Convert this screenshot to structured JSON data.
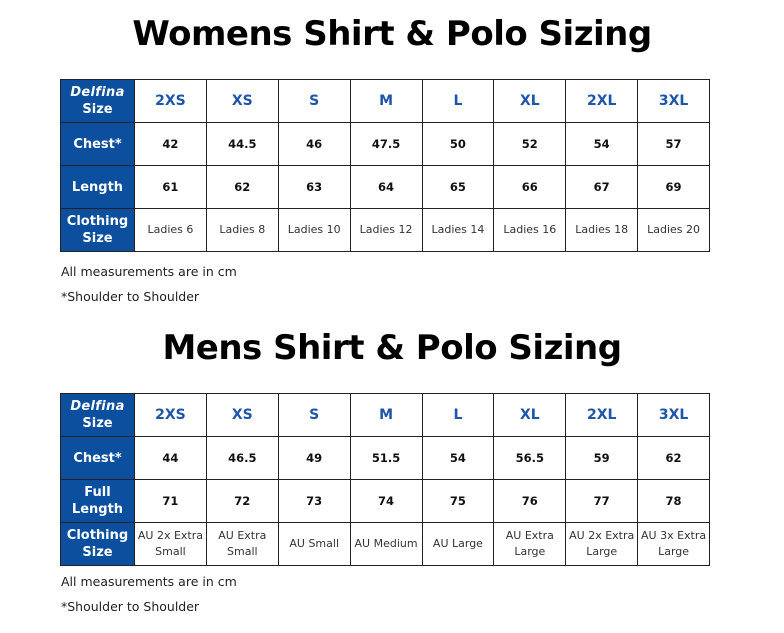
{
  "colors": {
    "header_bg": "#0c4f9e",
    "size_text": "#1d56a8"
  },
  "sections": [
    {
      "title": "Womens Shirt & Polo Sizing",
      "brand": "Delfina",
      "size_label": "Size",
      "sizes": [
        "2XS",
        "XS",
        "S",
        "M",
        "L",
        "XL",
        "2XL",
        "3XL"
      ],
      "rows": [
        {
          "label": "Chest*",
          "kind": "num",
          "values": [
            "42",
            "44.5",
            "46",
            "47.5",
            "50",
            "52",
            "54",
            "57"
          ]
        },
        {
          "label": "Length",
          "kind": "num",
          "values": [
            "61",
            "62",
            "63",
            "64",
            "65",
            "66",
            "67",
            "69"
          ]
        },
        {
          "label": "Clothing Size",
          "kind": "txt",
          "values": [
            "Ladies 6",
            "Ladies 8",
            "Ladies 10",
            "Ladies 12",
            "Ladies 14",
            "Ladies 16",
            "Ladies 18",
            "Ladies 20"
          ]
        }
      ],
      "notes": [
        "All measurements are in cm",
        "*Shoulder to Shoulder"
      ]
    },
    {
      "title": "Mens Shirt & Polo Sizing",
      "brand": "Delfina",
      "size_label": "Size",
      "sizes": [
        "2XS",
        "XS",
        "S",
        "M",
        "L",
        "XL",
        "2XL",
        "3XL"
      ],
      "rows": [
        {
          "label": "Chest*",
          "kind": "num",
          "values": [
            "44",
            "46.5",
            "49",
            "51.5",
            "54",
            "56.5",
            "59",
            "62"
          ]
        },
        {
          "label": "Full Length",
          "kind": "num",
          "values": [
            "71",
            "72",
            "73",
            "74",
            "75",
            "76",
            "77",
            "78"
          ]
        },
        {
          "label": "Clothing Size",
          "kind": "txt",
          "values": [
            "AU 2x Extra Small",
            "AU Extra Small",
            "AU Small",
            "AU Medium",
            "AU Large",
            "AU Extra Large",
            "AU 2x Extra Large",
            "AU 3x Extra Large"
          ]
        }
      ],
      "notes": [
        "All measurements are in cm",
        "*Shoulder to Shoulder"
      ]
    }
  ]
}
